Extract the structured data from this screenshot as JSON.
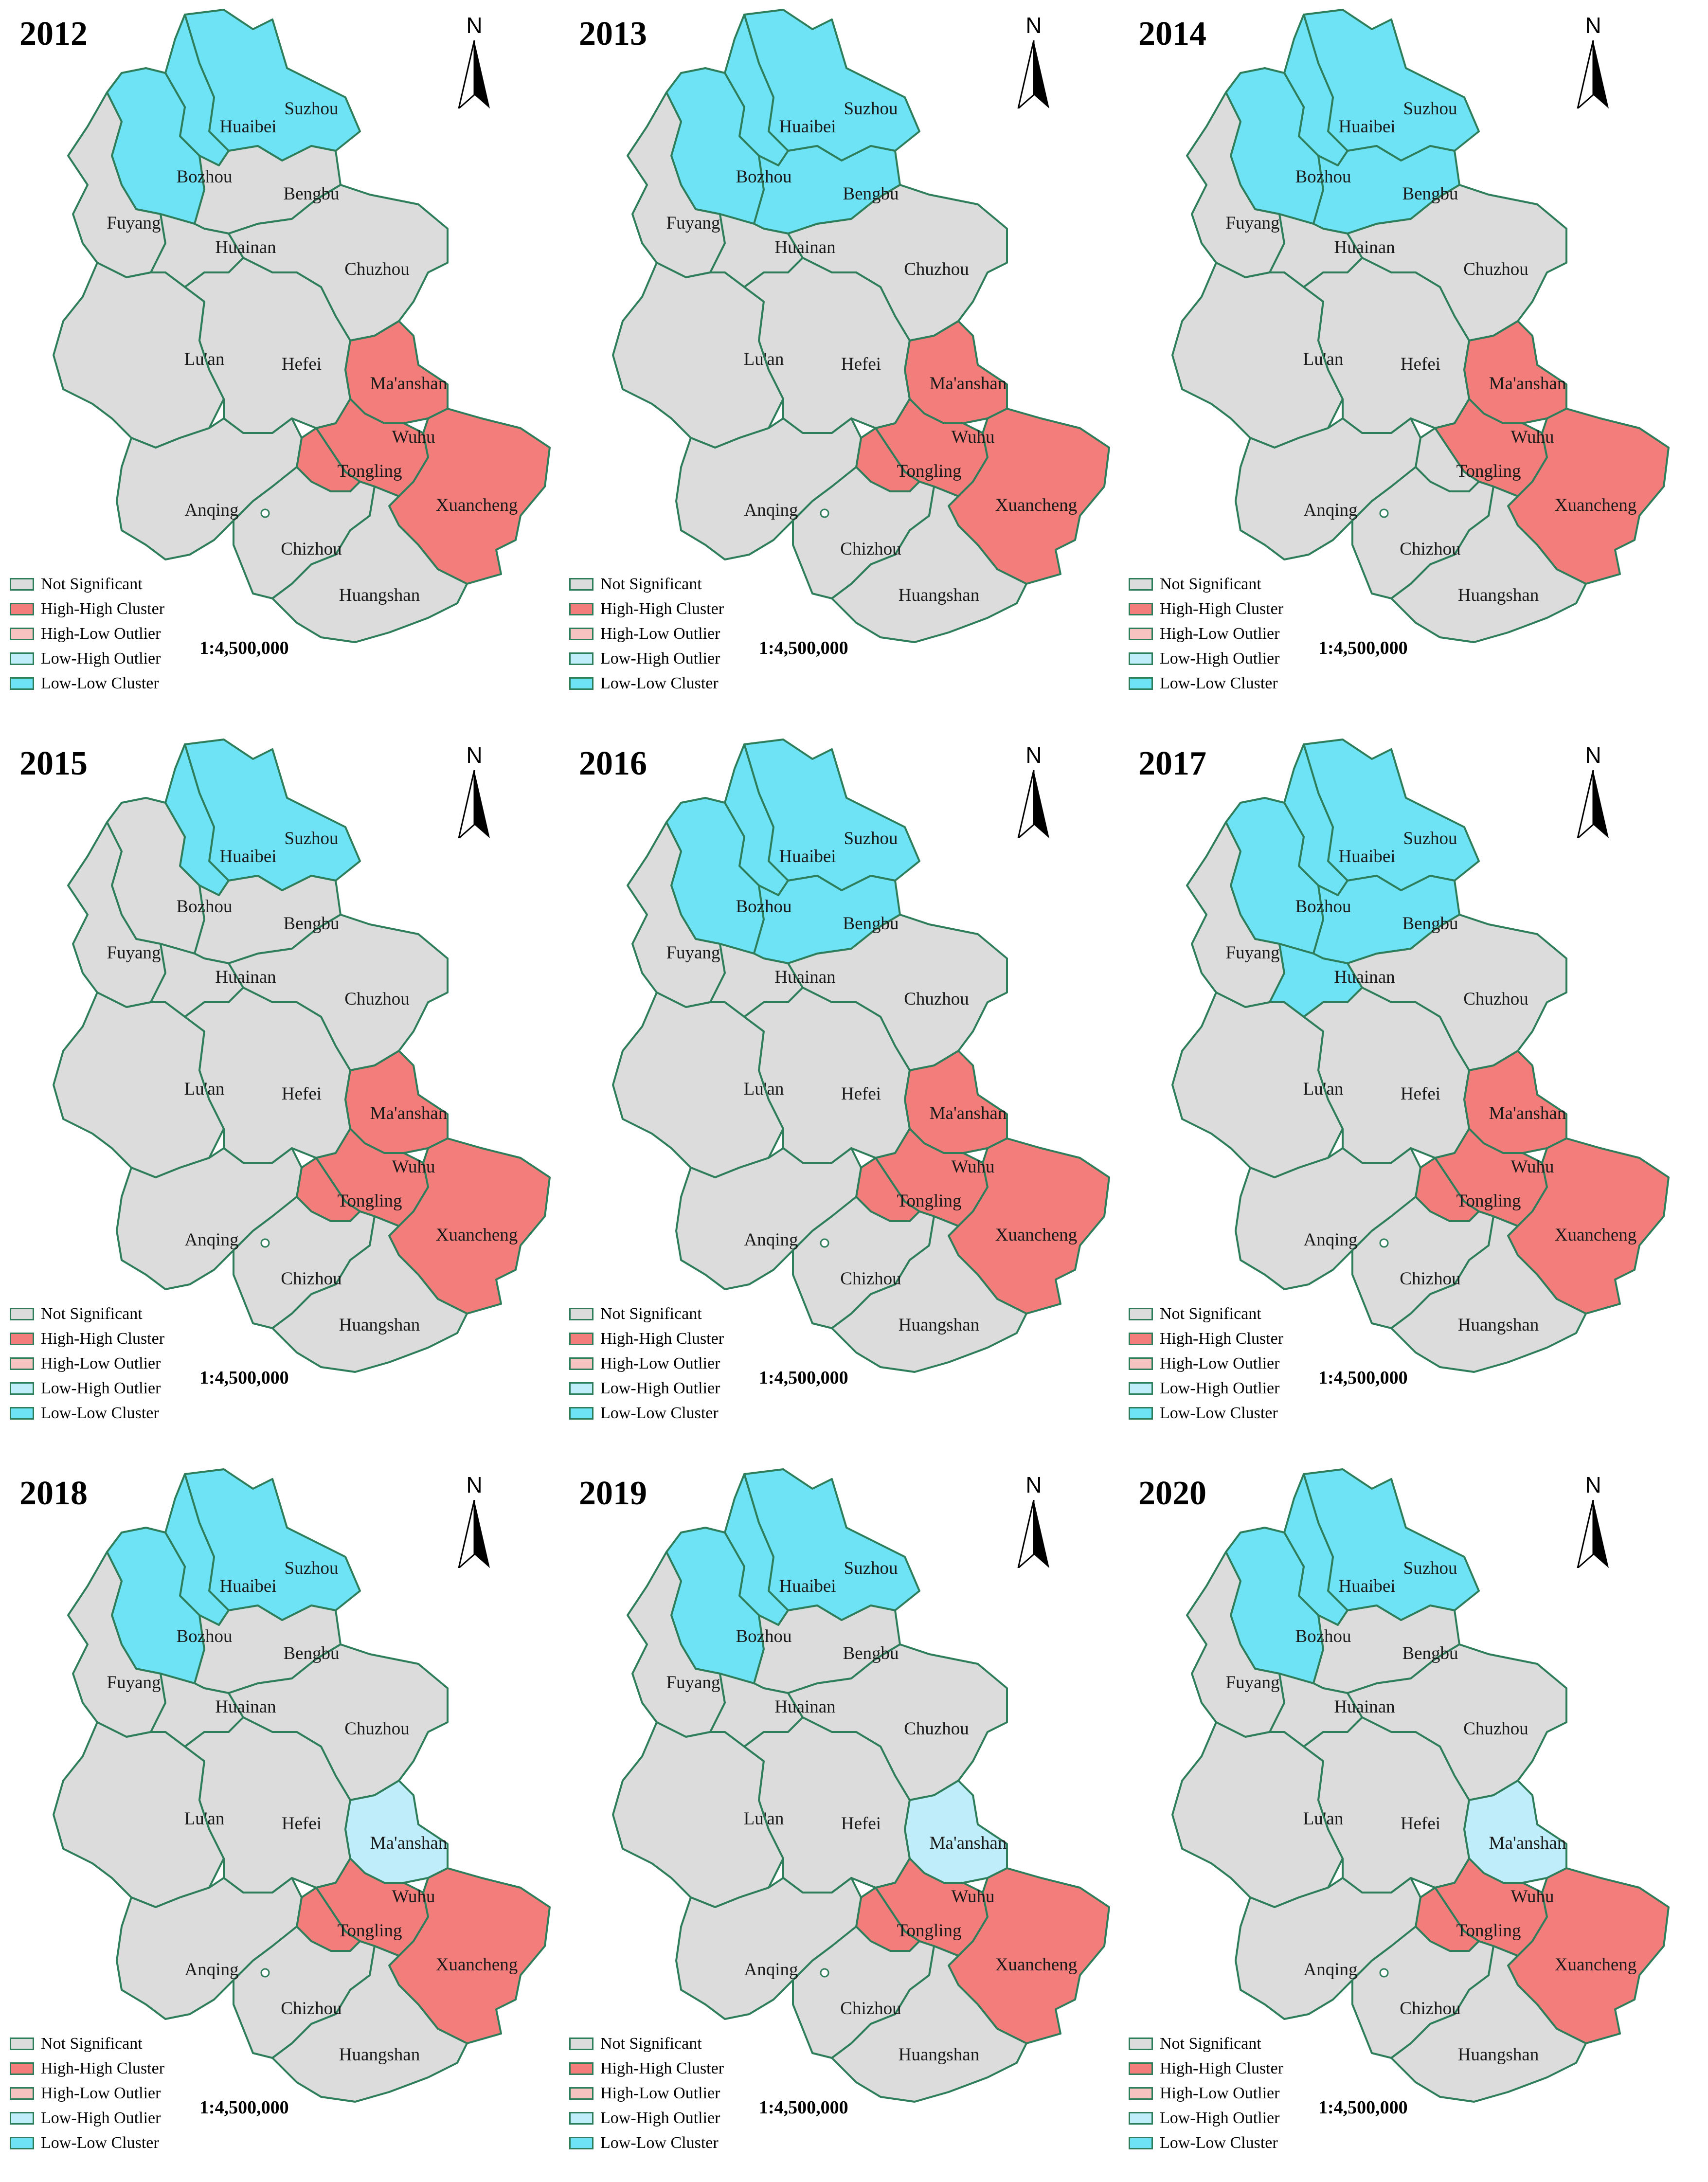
{
  "figure": {
    "scale_text": "1:4,500,000",
    "north_label": "N",
    "colors": {
      "Not Significant": "#dcdcdc",
      "High-High Cluster": "#f27d7a",
      "High-Low Outlier": "#f6c3c0",
      "Low-High Outlier": "#bfeefa",
      "Low-Low Cluster": "#6ee3f5",
      "border": "#2e7d5b"
    },
    "legend": [
      {
        "label": "Not Significant",
        "category": "Not Significant"
      },
      {
        "label": "High-High Cluster",
        "category": "High-High Cluster"
      },
      {
        "label": "High-Low Outlier",
        "category": "High-Low Outlier"
      },
      {
        "label": "Low-High Outlier",
        "category": "Low-High Outlier"
      },
      {
        "label": "Low-Low Cluster",
        "category": "Low-Low Cluster"
      }
    ],
    "prefectures": [
      "Suzhou",
      "Huaibei",
      "Bozhou",
      "Bengbu",
      "Fuyang",
      "Huainan",
      "Chuzhou",
      "Lu'an",
      "Hefei",
      "Ma'anshan",
      "Wuhu",
      "Tongling",
      "Xuancheng",
      "Anqing",
      "Chizhou",
      "Huangshan"
    ],
    "panels": [
      {
        "year": "2012",
        "classes": {
          "Suzhou": "Low-Low Cluster",
          "Huaibei": "Low-Low Cluster",
          "Bozhou": "Low-Low Cluster",
          "Bengbu": "Not Significant",
          "Fuyang": "Not Significant",
          "Huainan": "Not Significant",
          "Chuzhou": "Not Significant",
          "Lu'an": "Not Significant",
          "Hefei": "Not Significant",
          "Ma'anshan": "High-High Cluster",
          "Wuhu": "High-High Cluster",
          "Tongling": "High-High Cluster",
          "Xuancheng": "High-High Cluster",
          "Anqing": "Not Significant",
          "Chizhou": "Not Significant",
          "Huangshan": "Not Significant"
        }
      },
      {
        "year": "2013",
        "classes": {
          "Suzhou": "Low-Low Cluster",
          "Huaibei": "Low-Low Cluster",
          "Bozhou": "Low-Low Cluster",
          "Bengbu": "Low-Low Cluster",
          "Fuyang": "Not Significant",
          "Huainan": "Not Significant",
          "Chuzhou": "Not Significant",
          "Lu'an": "Not Significant",
          "Hefei": "Not Significant",
          "Ma'anshan": "High-High Cluster",
          "Wuhu": "High-High Cluster",
          "Tongling": "High-High Cluster",
          "Xuancheng": "High-High Cluster",
          "Anqing": "Not Significant",
          "Chizhou": "Not Significant",
          "Huangshan": "Not Significant"
        }
      },
      {
        "year": "2014",
        "classes": {
          "Suzhou": "Low-Low Cluster",
          "Huaibei": "Low-Low Cluster",
          "Bozhou": "Low-Low Cluster",
          "Bengbu": "Low-Low Cluster",
          "Fuyang": "Not Significant",
          "Huainan": "Not Significant",
          "Chuzhou": "Not Significant",
          "Lu'an": "Not Significant",
          "Hefei": "Not Significant",
          "Ma'anshan": "High-High Cluster",
          "Wuhu": "High-High Cluster",
          "Tongling": "Not Significant",
          "Xuancheng": "High-High Cluster",
          "Anqing": "Not Significant",
          "Chizhou": "Not Significant",
          "Huangshan": "Not Significant"
        }
      },
      {
        "year": "2015",
        "classes": {
          "Suzhou": "Low-Low Cluster",
          "Huaibei": "Low-Low Cluster",
          "Bozhou": "Not Significant",
          "Bengbu": "Not Significant",
          "Fuyang": "Not Significant",
          "Huainan": "Not Significant",
          "Chuzhou": "Not Significant",
          "Lu'an": "Not Significant",
          "Hefei": "Not Significant",
          "Ma'anshan": "High-High Cluster",
          "Wuhu": "High-High Cluster",
          "Tongling": "High-High Cluster",
          "Xuancheng": "High-High Cluster",
          "Anqing": "Not Significant",
          "Chizhou": "Not Significant",
          "Huangshan": "Not Significant"
        }
      },
      {
        "year": "2016",
        "classes": {
          "Suzhou": "Low-Low Cluster",
          "Huaibei": "Low-Low Cluster",
          "Bozhou": "Low-Low Cluster",
          "Bengbu": "Low-Low Cluster",
          "Fuyang": "Not Significant",
          "Huainan": "Not Significant",
          "Chuzhou": "Not Significant",
          "Lu'an": "Not Significant",
          "Hefei": "Not Significant",
          "Ma'anshan": "High-High Cluster",
          "Wuhu": "High-High Cluster",
          "Tongling": "High-High Cluster",
          "Xuancheng": "High-High Cluster",
          "Anqing": "Not Significant",
          "Chizhou": "Not Significant",
          "Huangshan": "Not Significant"
        }
      },
      {
        "year": "2017",
        "classes": {
          "Suzhou": "Low-Low Cluster",
          "Huaibei": "Low-Low Cluster",
          "Bozhou": "Low-Low Cluster",
          "Bengbu": "Low-Low Cluster",
          "Fuyang": "Not Significant",
          "Huainan": "Low-Low Cluster",
          "Chuzhou": "Not Significant",
          "Lu'an": "Not Significant",
          "Hefei": "Not Significant",
          "Ma'anshan": "High-High Cluster",
          "Wuhu": "High-High Cluster",
          "Tongling": "High-High Cluster",
          "Xuancheng": "High-High Cluster",
          "Anqing": "Not Significant",
          "Chizhou": "Not Significant",
          "Huangshan": "Not Significant"
        }
      },
      {
        "year": "2018",
        "classes": {
          "Suzhou": "Low-Low Cluster",
          "Huaibei": "Low-Low Cluster",
          "Bozhou": "Low-Low Cluster",
          "Bengbu": "Not Significant",
          "Fuyang": "Not Significant",
          "Huainan": "Not Significant",
          "Chuzhou": "Not Significant",
          "Lu'an": "Not Significant",
          "Hefei": "Not Significant",
          "Ma'anshan": "Low-High Outlier",
          "Wuhu": "High-High Cluster",
          "Tongling": "High-High Cluster",
          "Xuancheng": "High-High Cluster",
          "Anqing": "Not Significant",
          "Chizhou": "Not Significant",
          "Huangshan": "Not Significant"
        }
      },
      {
        "year": "2019",
        "classes": {
          "Suzhou": "Low-Low Cluster",
          "Huaibei": "Low-Low Cluster",
          "Bozhou": "Low-Low Cluster",
          "Bengbu": "Not Significant",
          "Fuyang": "Not Significant",
          "Huainan": "Not Significant",
          "Chuzhou": "Not Significant",
          "Lu'an": "Not Significant",
          "Hefei": "Not Significant",
          "Ma'anshan": "Low-High Outlier",
          "Wuhu": "High-High Cluster",
          "Tongling": "High-High Cluster",
          "Xuancheng": "High-High Cluster",
          "Anqing": "Not Significant",
          "Chizhou": "Not Significant",
          "Huangshan": "Not Significant"
        }
      },
      {
        "year": "2020",
        "classes": {
          "Suzhou": "Low-Low Cluster",
          "Huaibei": "Low-Low Cluster",
          "Bozhou": "Low-Low Cluster",
          "Bengbu": "Not Significant",
          "Fuyang": "Not Significant",
          "Huainan": "Not Significant",
          "Chuzhou": "Not Significant",
          "Lu'an": "Not Significant",
          "Hefei": "Not Significant",
          "Ma'anshan": "Low-High Outlier",
          "Wuhu": "High-High Cluster",
          "Tongling": "High-High Cluster",
          "Xuancheng": "High-High Cluster",
          "Anqing": "Not Significant",
          "Chizhou": "Not Significant",
          "Huangshan": "Not Significant"
        }
      }
    ]
  }
}
